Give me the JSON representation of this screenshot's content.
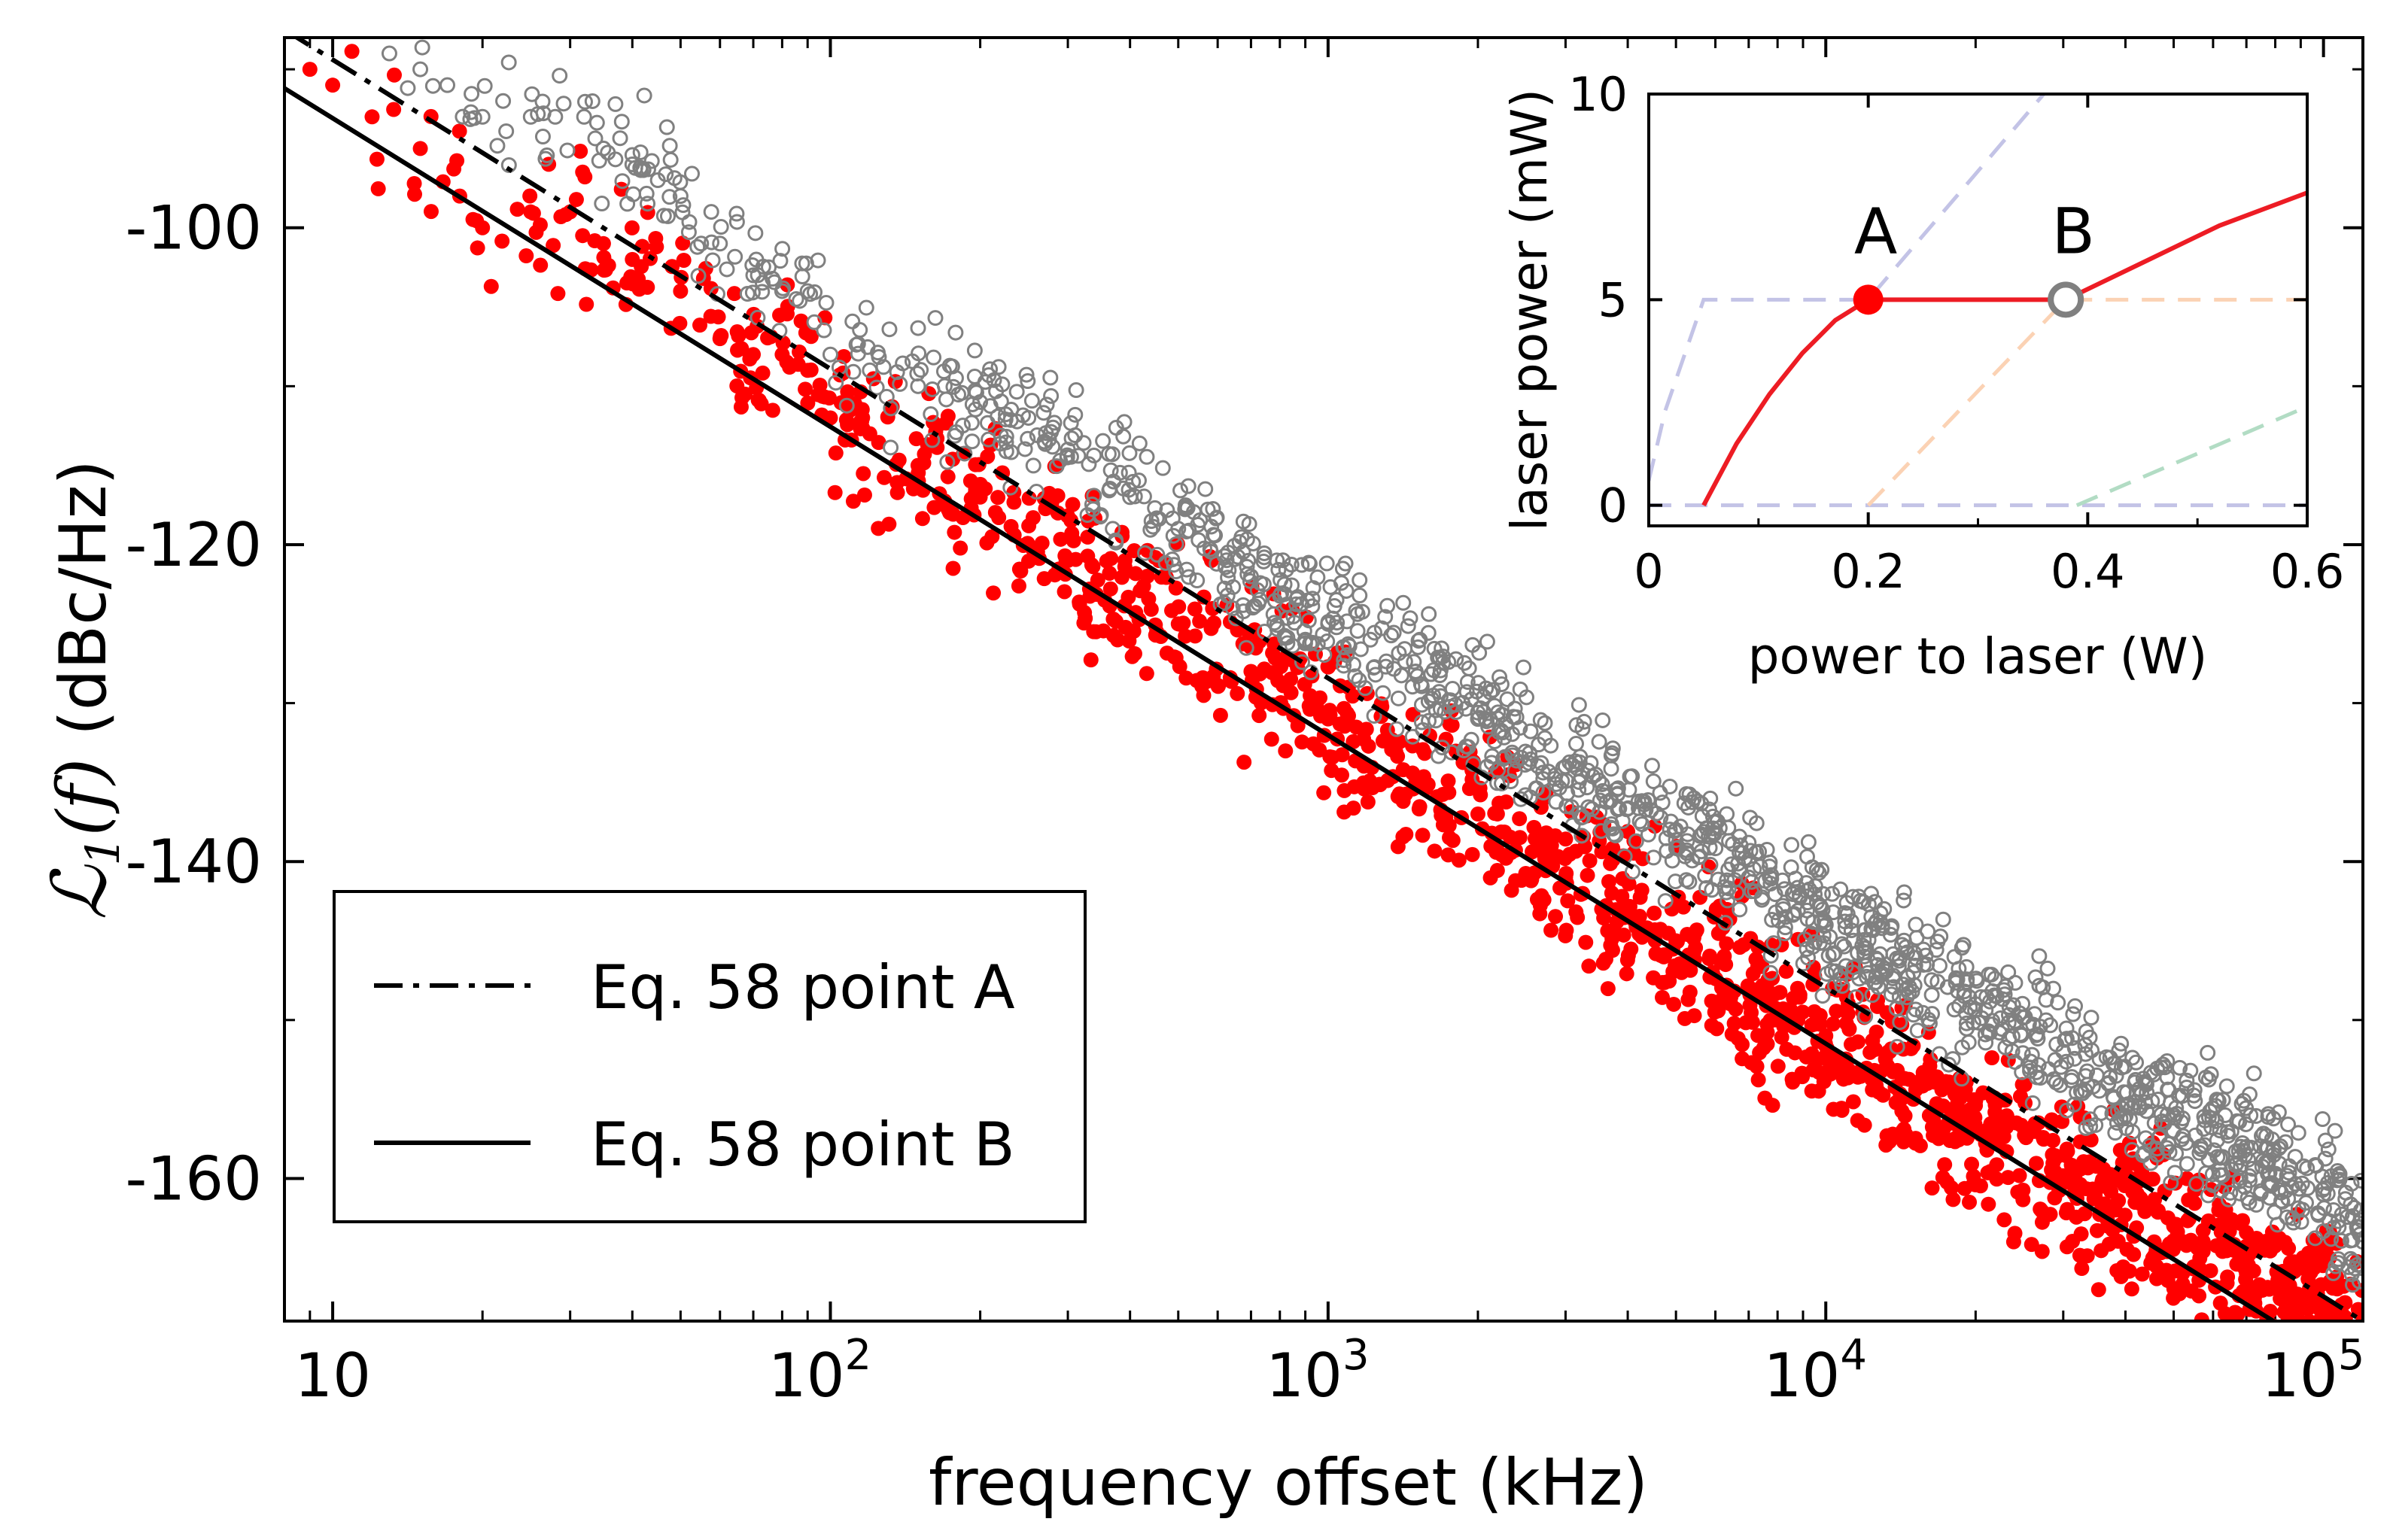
{
  "chart_data": [
    {
      "type": "scatter",
      "xscale": "log",
      "xlabel": "frequency offset (kHz)",
      "ylabel_math": "ℒ",
      "ylabel_sub": "1",
      "ylabel_arg": "(f)",
      "ylabel_units": "(dBc/Hz)",
      "xlim": [
        8,
        120000
      ],
      "ylim": [
        -169,
        -88
      ],
      "xticks": [
        {
          "value": 10,
          "base": "10",
          "exp": ""
        },
        {
          "value": 100,
          "base": "10",
          "exp": "2"
        },
        {
          "value": 1000,
          "base": "10",
          "exp": "3"
        },
        {
          "value": 10000,
          "base": "10",
          "exp": "4"
        },
        {
          "value": 100000,
          "base": "10",
          "exp": "5"
        }
      ],
      "yticks": [
        {
          "value": -100,
          "label": "-100"
        },
        {
          "value": -120,
          "label": "-120"
        },
        {
          "value": -140,
          "label": "-140"
        },
        {
          "value": -160,
          "label": "-160"
        }
      ],
      "series": [
        {
          "marker": "open-circle",
          "color": "#808080",
          "x": [
            13,
            15,
            17,
            20,
            22,
            25,
            28,
            32,
            35,
            40,
            45,
            50,
            55,
            60,
            70,
            80,
            90,
            100,
            120,
            150,
            200,
            250,
            300,
            400,
            500,
            700,
            1000,
            1500,
            2000,
            3000,
            5000,
            7000,
            10000,
            15000,
            20000,
            30000,
            50000,
            70000,
            100000,
            120000
          ],
          "y": [
            -89,
            -90,
            -91,
            -93,
            -92,
            -93,
            -93,
            -93,
            -95,
            -96,
            -97,
            -98,
            -101,
            -101,
            -103,
            -104,
            -104,
            -108,
            -109,
            -110,
            -111,
            -112,
            -114,
            -117,
            -119,
            -122,
            -125,
            -128,
            -131,
            -134,
            -138,
            -141,
            -144,
            -147,
            -149,
            -152,
            -156,
            -158,
            -161,
            -164
          ],
          "spread": 4
        },
        {
          "marker": "filled-circle",
          "color": "#ff0000",
          "x": [
            9,
            10,
            12,
            15,
            18,
            20,
            25,
            30,
            35,
            40,
            50,
            60,
            70,
            80,
            90,
            100,
            120,
            150,
            200,
            300,
            500,
            700,
            1000,
            1500,
            2000,
            3000,
            5000,
            7000,
            10000,
            15000,
            20000,
            30000,
            50000,
            70000,
            100000,
            120000
          ],
          "y": [
            -90,
            -91,
            -93,
            -95,
            -98,
            -100,
            -99,
            -99,
            -101,
            -102,
            -104,
            -107,
            -108,
            -108,
            -109,
            -112,
            -113,
            -115,
            -117,
            -121,
            -125,
            -128,
            -131,
            -135,
            -137,
            -141,
            -145,
            -148,
            -151,
            -155,
            -157,
            -160,
            -163,
            -166,
            -168,
            -169
          ],
          "spread": 5
        },
        {
          "name": "Eq. 58 point A",
          "type": "line",
          "dash": "dashdot",
          "color": "#000000",
          "x": [
            8,
            120000
          ],
          "y": [
            -87.5,
            -169
          ]
        },
        {
          "name": "Eq. 58 point B",
          "type": "line",
          "dash": "solid",
          "color": "#000000",
          "x": [
            8,
            120000
          ],
          "y": [
            -91.2,
            -172.5
          ]
        }
      ],
      "legend_position": "lower-left"
    },
    {
      "type": "line",
      "inset": true,
      "inset_position": "top-right",
      "xlabel": "power to laser (W)",
      "ylabel": "laser power (mW)",
      "xlim": [
        0,
        0.6
      ],
      "ylim": [
        -0.5,
        10
      ],
      "xticks": [
        {
          "value": 0,
          "label": "0"
        },
        {
          "value": 0.2,
          "label": "0.2"
        },
        {
          "value": 0.4,
          "label": "0.4"
        },
        {
          "value": 0.6,
          "label": "0.6"
        }
      ],
      "yticks": [
        {
          "value": 0,
          "label": "0"
        },
        {
          "value": 5,
          "label": "5"
        },
        {
          "value": 10,
          "label": "10"
        }
      ],
      "series": [
        {
          "style": "dashed",
          "color": "#c3c3e6",
          "x": [
            0,
            0.015,
            0.05,
            0.2,
            0.36
          ],
          "y": [
            0.6,
            2.3,
            5,
            5,
            10
          ]
        },
        {
          "style": "dashed",
          "color": "#c3c3e6",
          "x": [
            0,
            0.6
          ],
          "y": [
            0,
            0
          ]
        },
        {
          "style": "dashed",
          "color": "#fbd2b4",
          "x": [
            0.2,
            0.38,
            0.6
          ],
          "y": [
            0,
            5,
            5
          ]
        },
        {
          "style": "dashed",
          "color": "#b2dcc4",
          "x": [
            0.39,
            0.6
          ],
          "y": [
            0,
            2.4
          ]
        },
        {
          "style": "solid",
          "color": "#ed1c24",
          "x": [
            0.05,
            0.08,
            0.11,
            0.14,
            0.17,
            0.2,
            0.38,
            0.45,
            0.52,
            0.6
          ],
          "y": [
            0,
            1.5,
            2.7,
            3.7,
            4.5,
            5,
            5,
            5.9,
            6.8,
            7.6
          ]
        }
      ],
      "annotations": [
        {
          "text": "A",
          "x": 0.2,
          "y": 5,
          "marker": "filled-circle",
          "color": "#ff0000"
        },
        {
          "text": "B",
          "x": 0.38,
          "y": 5,
          "marker": "open-circle",
          "color": "#808080"
        }
      ]
    }
  ]
}
